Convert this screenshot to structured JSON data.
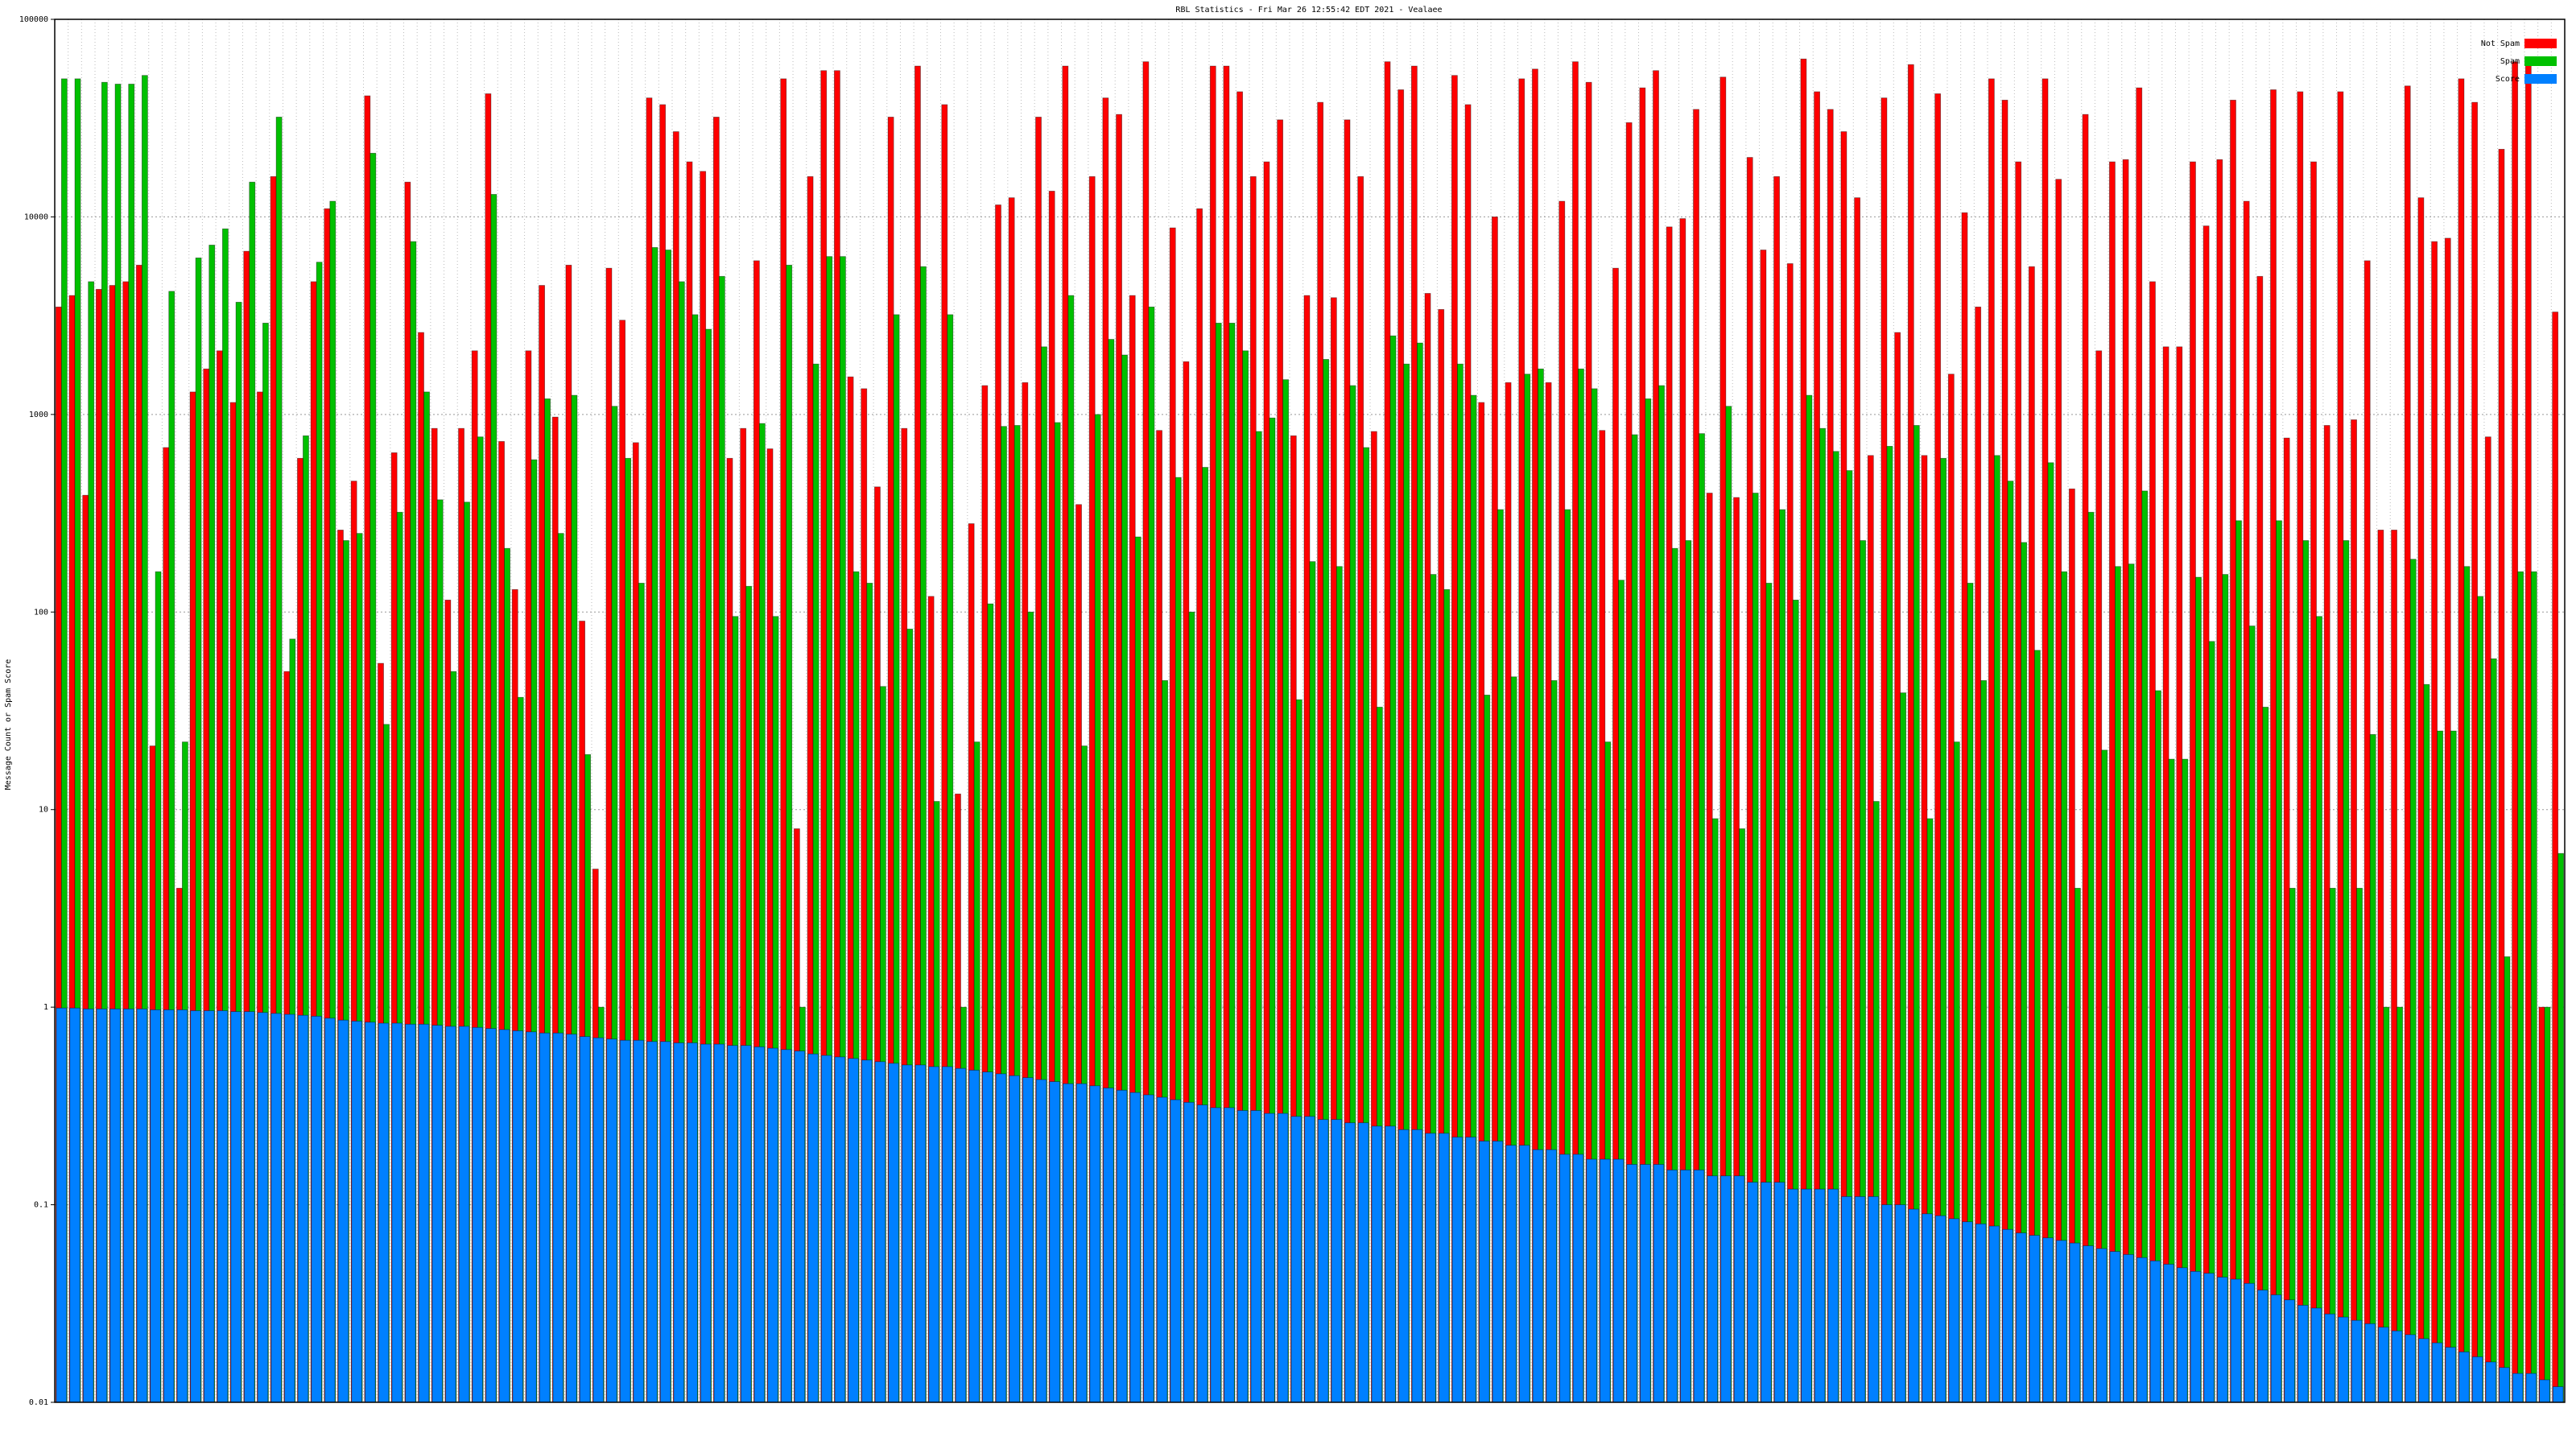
{
  "chart_data": {
    "type": "bar",
    "title": "RBL Statistics - Fri Mar 26 12:55:42 EDT 2021 - Vealaee",
    "ylabel": "Message Count or Spam Score",
    "log_scale": true,
    "grid": true,
    "legend": "top-right",
    "ylim": [
      0.01,
      100000
    ],
    "yticks": [
      0.01,
      0.1,
      1,
      10,
      100,
      1000,
      10000,
      100000
    ],
    "categories": [
      null,
      null,
      null,
      null,
      null,
      null,
      null,
      null,
      null,
      null,
      null,
      null,
      null,
      null,
      null,
      null,
      null,
      null,
      null,
      null,
      null,
      null,
      null,
      null,
      null,
      null,
      null,
      null,
      null,
      null,
      null,
      null,
      null,
      null,
      null,
      null,
      null,
      null,
      null,
      null,
      null,
      null,
      null,
      null,
      null,
      null,
      null,
      null,
      null,
      null,
      null,
      null,
      null,
      null,
      null,
      null,
      null,
      null,
      null,
      null,
      null,
      null,
      null,
      null,
      null,
      null,
      null,
      null,
      null,
      null,
      null,
      null,
      null,
      null,
      null,
      null,
      null,
      null,
      null,
      null,
      null,
      null,
      null,
      null,
      null,
      null,
      null,
      null,
      null,
      null,
      null,
      null,
      null,
      null,
      null,
      null,
      null,
      null,
      null,
      null,
      null,
      null,
      null,
      null,
      null,
      null,
      null,
      null,
      null,
      null,
      null,
      null,
      null,
      null,
      null,
      null,
      null,
      null,
      null,
      null,
      null,
      null,
      null,
      null,
      null,
      null,
      null,
      null,
      null,
      null,
      null,
      null,
      null,
      null,
      null,
      null,
      null,
      null,
      null,
      null,
      null,
      null,
      null,
      null,
      null,
      null,
      null,
      null,
      null,
      null,
      null,
      null,
      null,
      null,
      null,
      null,
      null,
      null,
      null,
      null,
      null,
      null,
      null,
      null,
      null,
      null,
      null,
      null,
      null,
      null,
      null,
      null,
      null,
      null,
      null,
      null,
      null,
      null,
      null,
      null,
      null,
      null,
      null,
      null,
      null,
      null,
      null
    ],
    "series": [
      {
        "name": "Not Spam",
        "color": "#ff0000",
        "values": [
          3500,
          4000,
          390,
          4300,
          4500,
          4700,
          5700,
          21,
          680,
          4,
          1300,
          1700,
          2100,
          1150,
          6700,
          1300,
          16000,
          50,
          600,
          4700,
          11000,
          260,
          460,
          41000,
          55,
          640,
          15000,
          2600,
          850,
          115,
          850,
          2100,
          42000,
          730,
          130,
          2100,
          4500,
          970,
          5700,
          90,
          5,
          5500,
          3000,
          720,
          40000,
          37000,
          27000,
          19000,
          17000,
          32000,
          600,
          850,
          6000,
          670,
          50000,
          8,
          16000,
          55000,
          55000,
          1550,
          1350,
          430,
          32000,
          850,
          58000,
          120,
          37000,
          12,
          280,
          1400,
          11500,
          12500,
          1450,
          32000,
          13500,
          58000,
          350,
          16000,
          40000,
          33000,
          4000,
          61000,
          830,
          8800,
          1850,
          11000,
          58000,
          58000,
          43000,
          16000,
          19000,
          31000,
          780,
          4000,
          38000,
          3900,
          31000,
          16000,
          820,
          61000,
          44000,
          58000,
          4100,
          3400,
          52000,
          37000,
          1150,
          10000,
          1450,
          50000,
          56000,
          1450,
          12000,
          61000,
          48000,
          830,
          5500,
          30000,
          45000,
          55000,
          8900,
          9800,
          35000,
          400,
          51000,
          380,
          20000,
          6800,
          16000,
          5800,
          63000,
          43000,
          35000,
          27000,
          12500,
          620,
          40000,
          2600,
          59000,
          620,
          42000,
          1600,
          10500,
          3500,
          50000,
          39000,
          19000,
          5600,
          50000,
          15500,
          420,
          33000,
          2100,
          19000,
          19500,
          45000,
          4700,
          2200,
          2200,
          19000,
          9000,
          19500,
          39000,
          12000,
          5000,
          44000,
          760,
          43000,
          19000,
          880,
          43000,
          940,
          6000,
          260,
          260,
          46000,
          12500,
          7500,
          7800,
          50000,
          38000,
          770,
          22000,
          61000,
          61000,
          1,
          3300
        ]
      },
      {
        "name": "Spam",
        "color": "#00c000",
        "values": [
          50000,
          50000,
          4700,
          48000,
          47000,
          47000,
          52000,
          160,
          4200,
          22,
          6200,
          7200,
          8700,
          3700,
          15000,
          2900,
          32000,
          73,
          780,
          5900,
          12000,
          230,
          250,
          21000,
          27,
          320,
          7500,
          1300,
          370,
          50,
          360,
          770,
          13000,
          210,
          37,
          590,
          1200,
          250,
          1250,
          19,
          1,
          1100,
          600,
          140,
          7000,
          6800,
          4700,
          3200,
          2700,
          5000,
          95,
          135,
          900,
          95,
          5700,
          1,
          1800,
          6300,
          6300,
          160,
          140,
          42,
          3200,
          82,
          5600,
          11,
          3200,
          1,
          22,
          110,
          870,
          880,
          100,
          2200,
          910,
          4000,
          21,
          1000,
          2400,
          2000,
          240,
          3500,
          45,
          480,
          100,
          540,
          2900,
          2900,
          2100,
          820,
          960,
          1500,
          36,
          180,
          1900,
          170,
          1400,
          680,
          33,
          2500,
          1800,
          2300,
          155,
          130,
          1800,
          1250,
          38,
          330,
          47,
          1600,
          1700,
          45,
          330,
          1700,
          1350,
          22,
          145,
          790,
          1200,
          1400,
          210,
          230,
          800,
          9,
          1100,
          8,
          400,
          140,
          330,
          115,
          1250,
          850,
          650,
          520,
          230,
          11,
          690,
          39,
          880,
          9,
          600,
          22,
          140,
          45,
          620,
          460,
          225,
          64,
          570,
          160,
          4,
          320,
          20,
          170,
          175,
          410,
          40,
          18,
          18,
          150,
          71,
          155,
          290,
          85,
          33,
          290,
          4,
          230,
          95,
          4,
          230,
          4,
          24,
          1,
          1,
          185,
          43,
          25,
          25,
          170,
          120,
          58,
          1.8,
          160,
          160,
          1,
          6
        ]
      },
      {
        "name": "Score",
        "color": "#0080ff",
        "values": [
          0.99,
          0.99,
          0.98,
          0.98,
          0.98,
          0.98,
          0.98,
          0.97,
          0.97,
          0.97,
          0.96,
          0.96,
          0.96,
          0.95,
          0.95,
          0.94,
          0.93,
          0.92,
          0.91,
          0.9,
          0.88,
          0.86,
          0.85,
          0.84,
          0.83,
          0.83,
          0.82,
          0.82,
          0.81,
          0.8,
          0.8,
          0.79,
          0.78,
          0.77,
          0.76,
          0.75,
          0.74,
          0.74,
          0.73,
          0.71,
          0.7,
          0.69,
          0.68,
          0.68,
          0.67,
          0.67,
          0.66,
          0.66,
          0.65,
          0.65,
          0.64,
          0.64,
          0.63,
          0.62,
          0.61,
          0.6,
          0.58,
          0.57,
          0.56,
          0.55,
          0.54,
          0.53,
          0.52,
          0.51,
          0.51,
          0.5,
          0.5,
          0.49,
          0.48,
          0.47,
          0.46,
          0.45,
          0.44,
          0.43,
          0.42,
          0.41,
          0.41,
          0.4,
          0.39,
          0.38,
          0.37,
          0.36,
          0.35,
          0.34,
          0.33,
          0.32,
          0.31,
          0.31,
          0.3,
          0.3,
          0.29,
          0.29,
          0.28,
          0.28,
          0.27,
          0.27,
          0.26,
          0.26,
          0.25,
          0.25,
          0.24,
          0.24,
          0.23,
          0.23,
          0.22,
          0.22,
          0.21,
          0.21,
          0.2,
          0.2,
          0.19,
          0.19,
          0.18,
          0.18,
          0.17,
          0.17,
          0.17,
          0.16,
          0.16,
          0.16,
          0.15,
          0.15,
          0.15,
          0.14,
          0.14,
          0.14,
          0.13,
          0.13,
          0.13,
          0.12,
          0.12,
          0.12,
          0.12,
          0.11,
          0.11,
          0.11,
          0.1,
          0.1,
          0.095,
          0.09,
          0.088,
          0.085,
          0.082,
          0.08,
          0.078,
          0.075,
          0.072,
          0.07,
          0.068,
          0.066,
          0.064,
          0.062,
          0.06,
          0.058,
          0.056,
          0.054,
          0.052,
          0.05,
          0.048,
          0.046,
          0.045,
          0.043,
          0.042,
          0.04,
          0.037,
          0.035,
          0.033,
          0.031,
          0.03,
          0.028,
          0.027,
          0.026,
          0.025,
          0.024,
          0.023,
          0.022,
          0.021,
          0.02,
          0.019,
          0.018,
          0.017,
          0.016,
          0.015,
          0.014,
          0.014,
          0.013,
          0.012
        ]
      }
    ]
  }
}
